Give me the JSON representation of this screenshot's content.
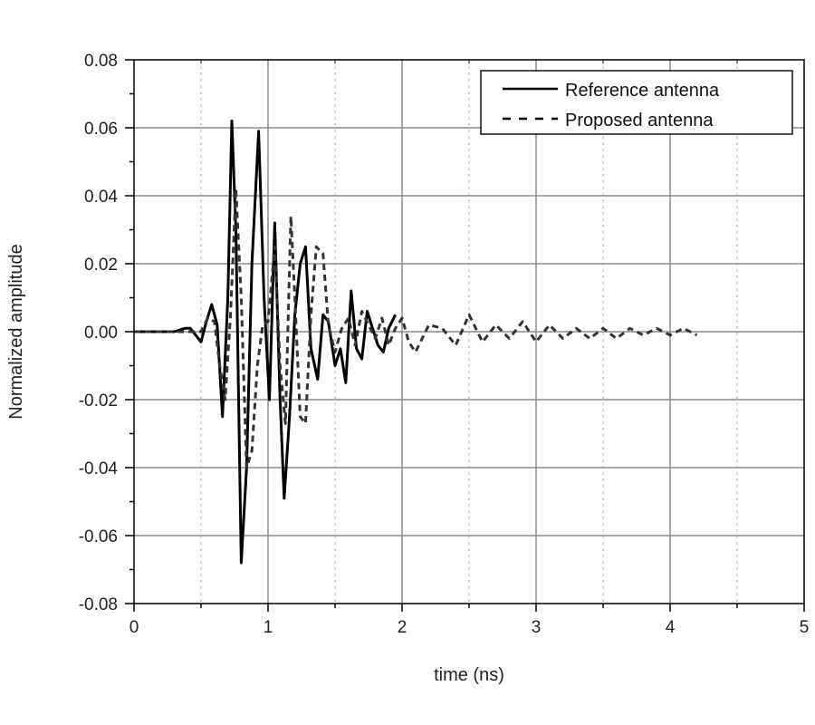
{
  "chart_data": {
    "type": "line",
    "title": "",
    "xlabel": "time (ns)",
    "ylabel": "Normalized amplitude",
    "xlim": [
      0,
      5
    ],
    "ylim": [
      -0.08,
      0.08
    ],
    "x_ticks": [
      "0",
      "1",
      "2",
      "3",
      "4",
      "5"
    ],
    "y_ticks": [
      "0.08",
      "0.06",
      "0.04",
      "0.02",
      "0.00",
      "-0.02",
      "-0.04",
      "-0.06",
      "-0.08"
    ],
    "grid": {
      "major": "solid gray",
      "minor_x": "dotted gray at 0.5 ns"
    },
    "legend": {
      "position": "upper right",
      "entries": [
        "Reference antenna",
        "Proposed antenna"
      ]
    },
    "series": [
      {
        "name": "Reference antenna",
        "style": "solid",
        "x": [
          0,
          0.3,
          0.38,
          0.42,
          0.46,
          0.5,
          0.54,
          0.58,
          0.62,
          0.66,
          0.7,
          0.73,
          0.76,
          0.8,
          0.84,
          0.88,
          0.93,
          0.97,
          1.01,
          1.05,
          1.09,
          1.12,
          1.16,
          1.2,
          1.24,
          1.28,
          1.32,
          1.37,
          1.41,
          1.45,
          1.5,
          1.54,
          1.58,
          1.62,
          1.66,
          1.7,
          1.74,
          1.78,
          1.82,
          1.86,
          1.9,
          1.95
        ],
        "y": [
          0,
          0,
          0.001,
          0.001,
          -0.001,
          -0.003,
          0.003,
          0.008,
          0.002,
          -0.025,
          0.01,
          0.062,
          0.03,
          -0.068,
          -0.04,
          0.02,
          0.059,
          0.01,
          -0.02,
          0.032,
          -0.02,
          -0.049,
          -0.025,
          0.005,
          0.02,
          0.025,
          -0.005,
          -0.014,
          0.005,
          0.003,
          -0.01,
          -0.005,
          -0.015,
          0.012,
          -0.005,
          -0.008,
          0.006,
          0.001,
          -0.004,
          -0.006,
          0.001,
          0.005
        ]
      },
      {
        "name": "Proposed antenna",
        "style": "dashed",
        "x": [
          0,
          0.4,
          0.5,
          0.55,
          0.6,
          0.64,
          0.68,
          0.72,
          0.76,
          0.8,
          0.84,
          0.88,
          0.92,
          0.96,
          1.0,
          1.05,
          1.09,
          1.13,
          1.17,
          1.2,
          1.24,
          1.28,
          1.32,
          1.36,
          1.41,
          1.45,
          1.5,
          1.55,
          1.6,
          1.65,
          1.7,
          1.75,
          1.8,
          1.85,
          1.9,
          1.95,
          2.0,
          2.05,
          2.1,
          2.2,
          2.3,
          2.4,
          2.5,
          2.6,
          2.7,
          2.8,
          2.9,
          3.0,
          3.1,
          3.2,
          3.3,
          3.4,
          3.5,
          3.6,
          3.7,
          3.8,
          3.9,
          4.0,
          4.1,
          4.2
        ],
        "y": [
          0,
          0,
          0,
          0.004,
          0.003,
          -0.01,
          -0.02,
          0.005,
          0.042,
          0.01,
          -0.04,
          -0.035,
          -0.01,
          0.002,
          0.003,
          0.025,
          -0.01,
          -0.027,
          0.034,
          0.01,
          -0.025,
          -0.027,
          0.005,
          0.025,
          0.023,
          0.002,
          -0.006,
          0.001,
          0.004,
          -0.004,
          0.006,
          0.002,
          -0.002,
          0.004,
          -0.004,
          0.001,
          0.004,
          -0.003,
          -0.006,
          0.002,
          0.001,
          -0.004,
          0.005,
          -0.003,
          0.002,
          -0.002,
          0.003,
          -0.003,
          0.002,
          -0.002,
          0.001,
          -0.002,
          0.001,
          -0.002,
          0.001,
          -0.001,
          0.001,
          -0.001,
          0.001,
          -0.001
        ]
      }
    ]
  },
  "colors": {
    "background": "#ffffff",
    "axis": "#000000",
    "grid_major": "#8c8c8c",
    "grid_minor": "#b0b0b0",
    "reference_line": "#000000",
    "proposed_line": "#333333"
  }
}
